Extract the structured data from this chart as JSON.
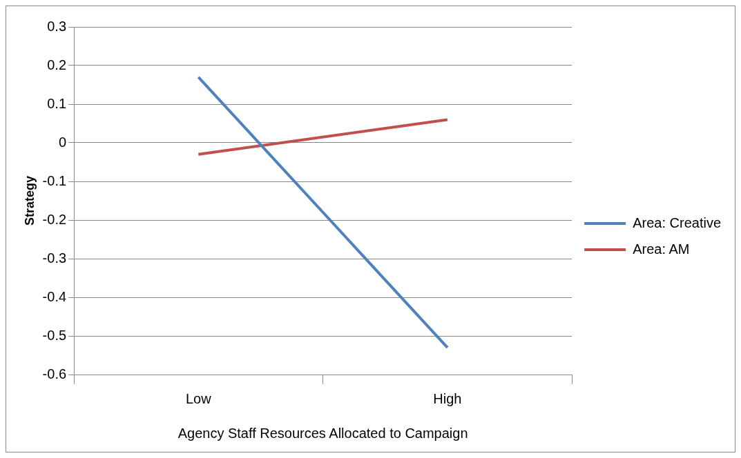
{
  "chart_data": {
    "type": "line",
    "xlabel": "Agency Staff Resources Allocated to Campaign",
    "ylabel": "Strategy",
    "categories": [
      "Low",
      "High"
    ],
    "series": [
      {
        "name": "Area: Creative",
        "color": "#4f81bd",
        "values": [
          0.17,
          -0.53
        ]
      },
      {
        "name": "Area: AM",
        "color": "#c0504d",
        "values": [
          -0.03,
          0.06
        ]
      }
    ],
    "ylim": [
      -0.6,
      0.3
    ],
    "yticks": [
      -0.6,
      -0.5,
      -0.4,
      -0.3,
      -0.2,
      -0.1,
      0,
      0.1,
      0.2,
      0.3
    ],
    "grid": "y",
    "legend": "right",
    "marker": "none",
    "line_style": "solid"
  }
}
